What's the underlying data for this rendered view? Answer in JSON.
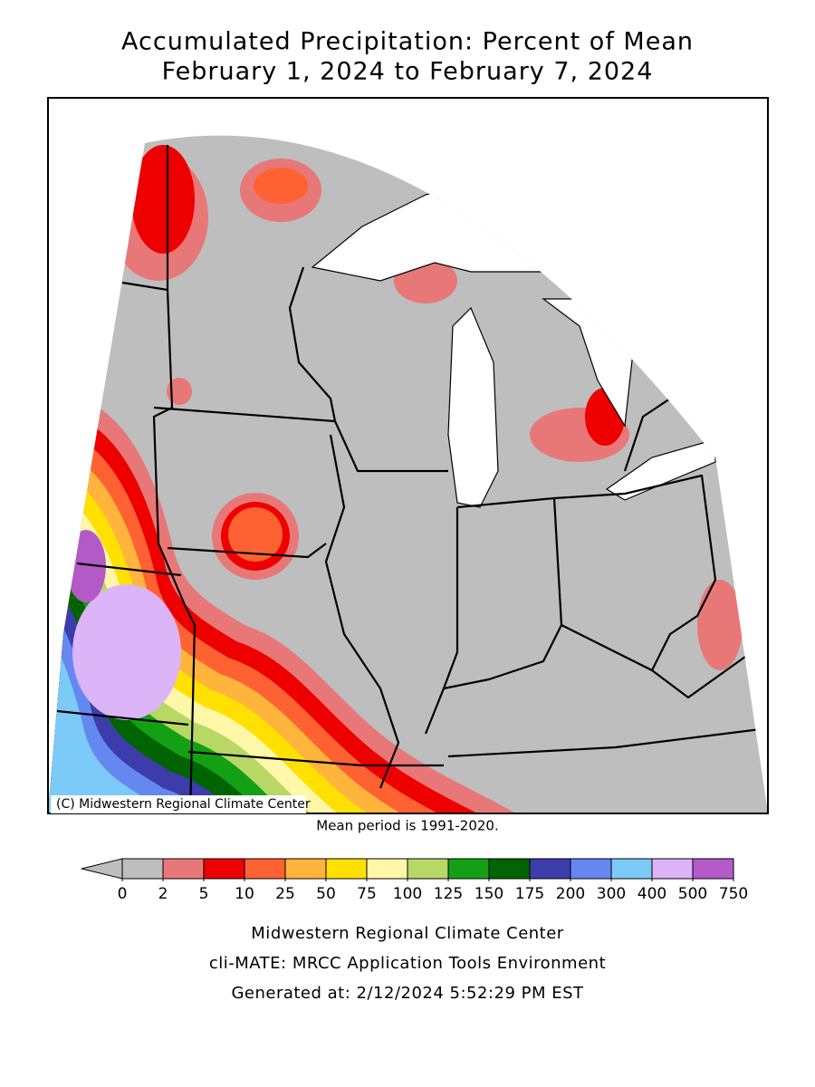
{
  "title": [
    "Accumulated Precipitation: Percent of Mean",
    "February 1, 2024 to February 7, 2024"
  ],
  "copyright": "(C) Midwestern Regional Climate Center",
  "note": "Mean period is 1991-2020.",
  "legend": {
    "ticks": [
      0,
      2,
      5,
      10,
      25,
      50,
      75,
      100,
      125,
      150,
      175,
      200,
      300,
      400,
      500,
      750
    ],
    "colors": [
      "#bebebe",
      "#e87878",
      "#ee0000",
      "#ff6232",
      "#ffb43c",
      "#ffe000",
      "#fff7a8",
      "#b8d866",
      "#14a014",
      "#006400",
      "#3c3caa",
      "#6488f0",
      "#7ccaf8",
      "#dcb4f8",
      "#b45ac8"
    ],
    "under_color": "#bebebe"
  },
  "footer": [
    "Midwestern Regional Climate Center",
    "cli-MATE: MRCC Application Tools Environment",
    "Generated at: 2/12/2024 5:52:29 PM EST"
  ]
}
